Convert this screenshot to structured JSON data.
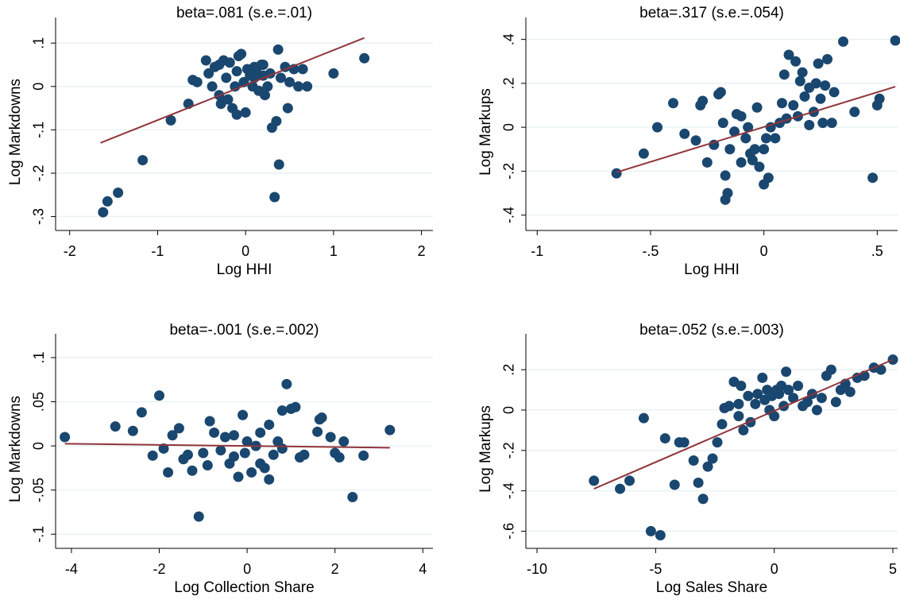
{
  "chart_data": [
    {
      "type": "scatter",
      "title": "beta=.081 (s.e.=.01)",
      "x_label": "Log HHI",
      "y_label": "Log Markdowns",
      "color": "#1a476f",
      "grid": true,
      "x": [
        -1.62,
        -1.57,
        -1.45,
        -1.17,
        -0.85,
        -0.65,
        -0.6,
        -0.55,
        -0.45,
        -0.42,
        -0.38,
        -0.35,
        -0.3,
        -0.28,
        -0.25,
        -0.22,
        -0.18,
        -0.15,
        -0.12,
        -0.1,
        -0.08,
        -0.05,
        -0.02,
        0.0,
        0.02,
        0.05,
        0.08,
        0.1,
        0.12,
        0.15,
        0.18,
        0.2,
        0.22,
        0.25,
        0.28,
        0.3,
        0.33,
        0.35,
        0.37,
        0.38,
        0.4,
        0.45,
        0.48,
        0.5,
        0.55,
        0.6,
        0.65,
        0.7,
        1.0,
        1.35,
        -0.1,
        -0.2,
        0.1,
        0.2,
        -0.3
      ],
      "y": [
        -0.29,
        -0.265,
        -0.245,
        -0.17,
        -0.078,
        -0.04,
        0.015,
        0.01,
        0.06,
        0.03,
        0.0,
        0.045,
        -0.02,
        -0.04,
        0.06,
        0.02,
        0.055,
        -0.05,
        0.0,
        0.035,
        0.07,
        0.075,
        0.01,
        -0.06,
        0.04,
        0.025,
        0.0,
        0.045,
        0.035,
        -0.01,
        0.05,
        0.025,
        -0.02,
        0.0,
        0.03,
        -0.095,
        -0.255,
        -0.08,
        0.085,
        -0.18,
        0.02,
        0.045,
        -0.05,
        0.01,
        0.04,
        0.0,
        0.04,
        0.0,
        0.03,
        0.065,
        -0.065,
        -0.03,
        0.02,
        0.05,
        0.05
      ],
      "fit": {
        "color": "#90353b",
        "x": [
          -1.65,
          1.35
        ],
        "y": [
          -0.13,
          0.112
        ]
      },
      "xlim": [
        -2.16,
        2.13
      ],
      "ylim": [
        -0.332,
        0.159
      ],
      "xticks": [
        -2,
        -1,
        0,
        1,
        2
      ],
      "yticks": [
        {
          "value": -0.3,
          "label": "-.3"
        },
        {
          "value": -0.2,
          "label": "-.2"
        },
        {
          "value": -0.1,
          "label": "-.1"
        },
        0,
        {
          "value": 0.1,
          "label": ".1"
        }
      ]
    },
    {
      "type": "scatter",
      "title": "beta=.317 (s.e.=.054)",
      "x_label": "Log HHI",
      "y_label": "Log Markups",
      "color": "#1a476f",
      "grid": true,
      "x": [
        -0.65,
        -0.53,
        -0.47,
        -0.4,
        -0.35,
        -0.3,
        -0.28,
        -0.27,
        -0.25,
        -0.22,
        -0.2,
        -0.19,
        -0.18,
        -0.17,
        -0.16,
        -0.17,
        -0.15,
        -0.13,
        -0.12,
        -0.1,
        -0.08,
        -0.07,
        -0.06,
        -0.05,
        -0.04,
        -0.03,
        -0.02,
        0.0,
        0.0,
        0.01,
        0.02,
        0.03,
        0.05,
        0.07,
        0.08,
        0.09,
        0.1,
        0.11,
        0.13,
        0.14,
        0.15,
        0.16,
        0.17,
        0.18,
        0.2,
        0.22,
        0.23,
        0.24,
        0.25,
        0.26,
        0.27,
        0.28,
        0.3,
        0.31,
        0.35,
        0.4,
        0.48,
        0.5,
        0.51,
        0.58,
        0.2,
        -0.1
      ],
      "y": [
        -0.21,
        -0.12,
        0.0,
        0.11,
        -0.03,
        -0.06,
        0.1,
        0.12,
        -0.16,
        -0.08,
        0.15,
        0.16,
        0.02,
        -0.22,
        -0.3,
        -0.33,
        -0.1,
        -0.02,
        0.06,
        -0.16,
        -0.05,
        0.0,
        -0.12,
        -0.15,
        -0.1,
        0.09,
        -0.18,
        -0.26,
        -0.1,
        -0.05,
        -0.23,
        0.0,
        -0.05,
        0.02,
        0.11,
        0.24,
        0.04,
        0.33,
        0.1,
        0.3,
        0.05,
        0.21,
        0.25,
        0.14,
        0.18,
        0.07,
        0.2,
        0.29,
        0.13,
        0.02,
        0.19,
        0.31,
        0.02,
        0.16,
        0.39,
        0.07,
        -0.23,
        0.1,
        0.13,
        0.395,
        0.01,
        0.05
      ],
      "fit": {
        "color": "#90353b",
        "x": [
          -0.65,
          0.58
        ],
        "y": [
          -0.205,
          0.185
        ]
      },
      "xlim": [
        -1.05,
        0.59
      ],
      "ylim": [
        -0.47,
        0.5
      ],
      "xticks": [
        -1,
        {
          "value": -0.5,
          "label": "-.5"
        },
        0,
        {
          "value": 0.5,
          "label": ".5"
        }
      ],
      "yticks": [
        {
          "value": -0.4,
          "label": "-.4"
        },
        {
          "value": -0.2,
          "label": "-.2"
        },
        0,
        {
          "value": 0.2,
          "label": ".2"
        },
        {
          "value": 0.4,
          "label": ".4"
        }
      ]
    },
    {
      "type": "scatter",
      "title": "beta=-.001 (s.e.=.002)",
      "x_label": "Log Collection Share",
      "y_label": "Log Markdowns",
      "color": "#1a476f",
      "grid": true,
      "x": [
        -4.15,
        -3.0,
        -2.6,
        -2.4,
        -2.15,
        -2.0,
        -1.9,
        -1.8,
        -1.7,
        -1.55,
        -1.45,
        -1.35,
        -1.25,
        -1.1,
        -1.0,
        -0.9,
        -0.85,
        -0.75,
        -0.6,
        -0.5,
        -0.4,
        -0.3,
        -0.2,
        -0.1,
        -0.05,
        0.0,
        0.1,
        0.2,
        0.3,
        0.4,
        0.5,
        0.5,
        0.6,
        0.7,
        0.8,
        0.8,
        0.9,
        1.0,
        1.1,
        1.2,
        1.3,
        1.6,
        1.65,
        1.7,
        1.9,
        2.0,
        2.1,
        2.2,
        2.4,
        2.65,
        3.25,
        -0.3,
        0.3
      ],
      "y": [
        0.01,
        0.022,
        0.017,
        0.038,
        -0.011,
        0.057,
        -0.003,
        -0.03,
        0.012,
        0.02,
        -0.015,
        -0.01,
        -0.028,
        -0.08,
        -0.008,
        -0.022,
        0.028,
        0.015,
        -0.005,
        0.01,
        -0.02,
        0.012,
        -0.035,
        0.035,
        -0.008,
        0.005,
        -0.03,
        0.0,
        0.015,
        -0.025,
        0.024,
        -0.038,
        -0.01,
        0.005,
        -0.003,
        0.04,
        0.07,
        0.042,
        0.044,
        -0.013,
        -0.01,
        0.016,
        0.03,
        0.032,
        0.01,
        -0.008,
        -0.013,
        0.005,
        -0.058,
        -0.011,
        0.018,
        -0.012,
        -0.02
      ],
      "fit": {
        "color": "#90353b",
        "x": [
          -4.15,
          3.25
        ],
        "y": [
          0.0025,
          -0.002
        ]
      },
      "xlim": [
        -4.36,
        4.23
      ],
      "ylim": [
        -0.116,
        0.127
      ],
      "xticks": [
        -4,
        -2,
        0,
        2,
        4
      ],
      "yticks": [
        {
          "value": -0.1,
          "label": "-.1"
        },
        {
          "value": -0.05,
          "label": "-.05"
        },
        0,
        {
          "value": 0.05,
          "label": ".05"
        },
        {
          "value": 0.1,
          "label": ".1"
        }
      ]
    },
    {
      "type": "scatter",
      "title": "beta=.052 (s.e.=.003)",
      "x_label": "Log Sales Share",
      "y_label": "Log Markups",
      "color": "#1a476f",
      "grid": true,
      "x": [
        -7.6,
        -6.5,
        -6.1,
        -5.5,
        -5.2,
        -4.8,
        -4.6,
        -4.2,
        -4.0,
        -3.8,
        -3.4,
        -3.2,
        -3.0,
        -2.8,
        -2.6,
        -2.4,
        -2.2,
        -2.1,
        -1.9,
        -1.7,
        -1.5,
        -1.4,
        -1.3,
        -1.1,
        -1.0,
        -0.8,
        -0.7,
        -0.5,
        -0.4,
        -0.3,
        -0.2,
        -0.1,
        0.0,
        0.2,
        0.3,
        0.4,
        0.5,
        0.6,
        0.8,
        1.0,
        1.2,
        1.4,
        1.6,
        1.8,
        2.0,
        2.2,
        2.4,
        2.6,
        2.8,
        3.0,
        3.2,
        3.5,
        3.8,
        4.2,
        4.5,
        5.0,
        0.1,
        -1.5
      ],
      "y": [
        -0.35,
        -0.39,
        -0.35,
        -0.04,
        -0.6,
        -0.62,
        -0.14,
        -0.37,
        -0.16,
        -0.16,
        -0.25,
        -0.36,
        -0.44,
        -0.28,
        -0.24,
        -0.16,
        -0.07,
        0.01,
        0.02,
        0.14,
        -0.03,
        0.12,
        -0.1,
        0.07,
        -0.06,
        0.03,
        0.08,
        0.16,
        0.05,
        0.1,
        0.0,
        0.07,
        -0.03,
        0.08,
        0.12,
        0.02,
        0.19,
        0.1,
        0.06,
        0.12,
        0.02,
        0.04,
        0.08,
        0.0,
        0.06,
        0.17,
        0.2,
        0.04,
        0.1,
        0.13,
        0.09,
        0.16,
        0.17,
        0.21,
        0.2,
        0.25,
        0.1,
        0.03
      ],
      "fit": {
        "color": "#90353b",
        "x": [
          -7.6,
          5.0
        ],
        "y": [
          -0.39,
          0.25
        ]
      },
      "xlim": [
        -10.47,
        5.2
      ],
      "ylim": [
        -0.685,
        0.378
      ],
      "xticks": [
        -10,
        -5,
        0,
        5
      ],
      "yticks": [
        {
          "value": -0.6,
          "label": "-.6"
        },
        {
          "value": -0.4,
          "label": "-.4"
        },
        {
          "value": -0.2,
          "label": "-.2"
        },
        0,
        {
          "value": 0.2,
          "label": ".2"
        }
      ]
    }
  ]
}
